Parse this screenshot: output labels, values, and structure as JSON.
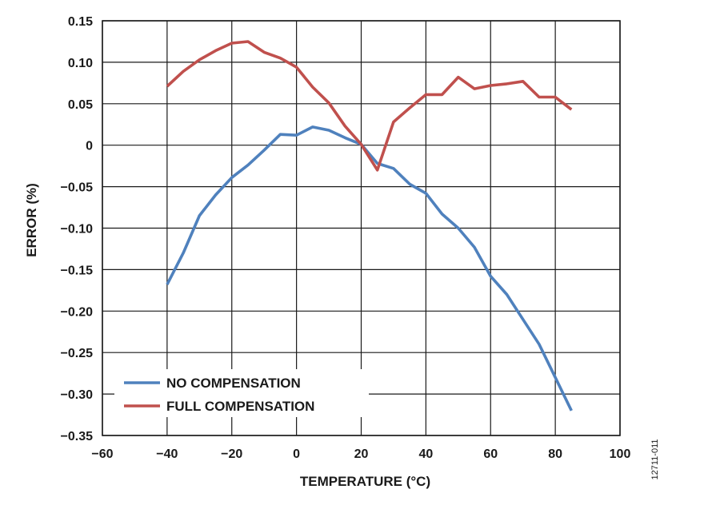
{
  "chart_data": {
    "type": "line",
    "xlabel": "TEMPERATURE (°C)",
    "ylabel": "ERROR (%)",
    "xlim": [
      -60,
      100
    ],
    "ylim": [
      -0.35,
      0.15
    ],
    "x_ticks": [
      -60,
      -40,
      -20,
      0,
      20,
      40,
      60,
      80,
      100
    ],
    "x_tick_labels": [
      "−60",
      "−40",
      "−20",
      "0",
      "20",
      "40",
      "60",
      "80",
      "100"
    ],
    "y_ticks": [
      0.15,
      0.1,
      0.05,
      0,
      -0.05,
      -0.1,
      -0.15,
      -0.2,
      -0.25,
      -0.3,
      -0.35
    ],
    "y_tick_labels": [
      "0.15",
      "0.10",
      "0.05",
      "0",
      "−0.05",
      "−0.10",
      "−0.15",
      "−0.20",
      "−0.25",
      "−0.30",
      "−0.35"
    ],
    "grid": true,
    "legend_position": "bottom-left",
    "series": [
      {
        "name": "NO COMPENSATION",
        "color": "#4f81bd",
        "x": [
          -40,
          -35,
          -30,
          -25,
          -20,
          -15,
          -10,
          -5,
          0,
          5,
          10,
          15,
          20,
          25,
          30,
          35,
          40,
          45,
          50,
          55,
          60,
          65,
          70,
          75,
          80,
          85
        ],
        "y": [
          -0.168,
          -0.13,
          -0.085,
          -0.06,
          -0.039,
          -0.024,
          -0.006,
          0.013,
          0.012,
          0.022,
          0.018,
          0.009,
          0.001,
          -0.022,
          -0.028,
          -0.047,
          -0.058,
          -0.083,
          -0.1,
          -0.123,
          -0.158,
          -0.18,
          -0.21,
          -0.24,
          -0.28,
          -0.32
        ]
      },
      {
        "name": "FULL COMPENSATION",
        "color": "#c0504d",
        "x": [
          -40,
          -35,
          -30,
          -25,
          -20,
          -15,
          -10,
          -5,
          0,
          5,
          10,
          15,
          20,
          25,
          30,
          35,
          40,
          45,
          50,
          55,
          60,
          65,
          70,
          75,
          80,
          85
        ],
        "y": [
          0.071,
          0.089,
          0.103,
          0.114,
          0.123,
          0.125,
          0.112,
          0.105,
          0.094,
          0.07,
          0.051,
          0.023,
          0.001,
          -0.03,
          0.028,
          0.045,
          0.061,
          0.061,
          0.082,
          0.068,
          0.072,
          0.074,
          0.077,
          0.058,
          0.058,
          0.043
        ]
      }
    ],
    "figure_id": "12711-011"
  }
}
